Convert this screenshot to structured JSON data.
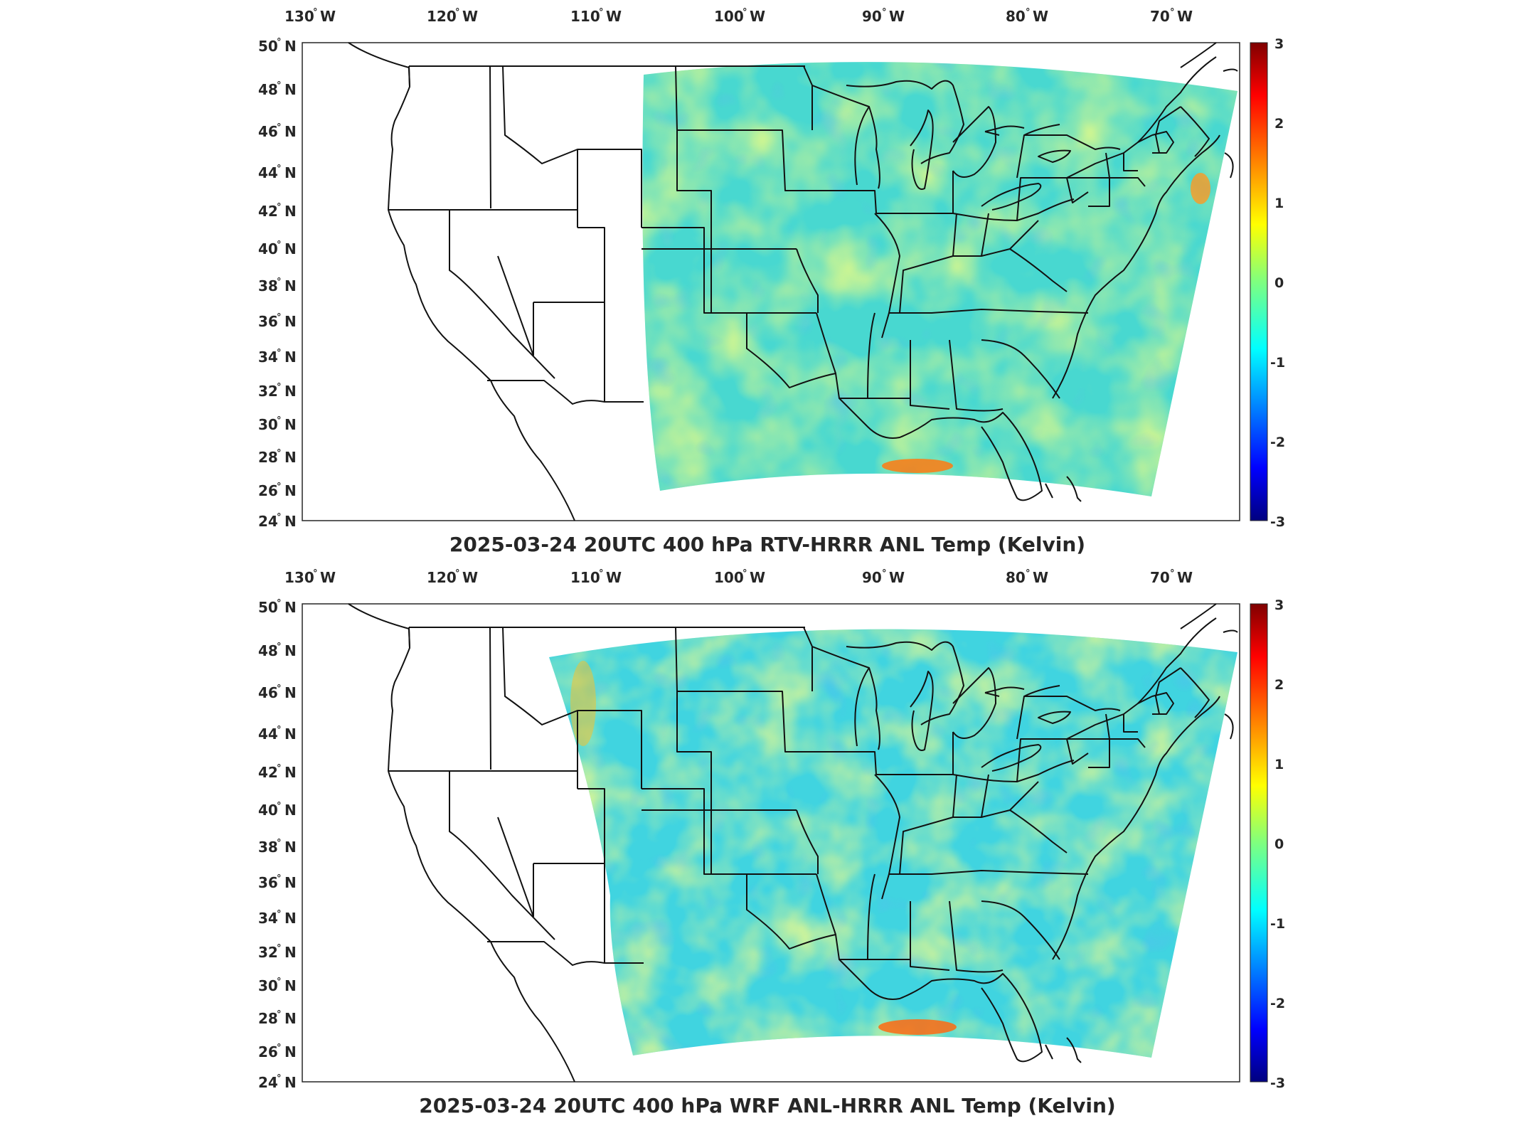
{
  "figure": {
    "colorbar": {
      "colormap": "jet",
      "ticks": [
        "3",
        "2",
        "1",
        "0",
        "-1",
        "-2",
        "-3"
      ],
      "range": [
        -3,
        3
      ]
    },
    "lon_ticks": [
      {
        "deg": "130",
        "hem": "W"
      },
      {
        "deg": "120",
        "hem": "W"
      },
      {
        "deg": "110",
        "hem": "W"
      },
      {
        "deg": "100",
        "hem": "W"
      },
      {
        "deg": "90",
        "hem": "W"
      },
      {
        "deg": "80",
        "hem": "W"
      },
      {
        "deg": "70",
        "hem": "W"
      }
    ],
    "lat_ticks": [
      {
        "deg": "50",
        "hem": "N"
      },
      {
        "deg": "48",
        "hem": "N"
      },
      {
        "deg": "46",
        "hem": "N"
      },
      {
        "deg": "44",
        "hem": "N"
      },
      {
        "deg": "42",
        "hem": "N"
      },
      {
        "deg": "40",
        "hem": "N"
      },
      {
        "deg": "38",
        "hem": "N"
      },
      {
        "deg": "36",
        "hem": "N"
      },
      {
        "deg": "34",
        "hem": "N"
      },
      {
        "deg": "32",
        "hem": "N"
      },
      {
        "deg": "30",
        "hem": "N"
      },
      {
        "deg": "28",
        "hem": "N"
      },
      {
        "deg": "26",
        "hem": "N"
      },
      {
        "deg": "24",
        "hem": "N"
      }
    ],
    "degree_symbol": "°"
  },
  "panels": [
    {
      "id": "top",
      "title": "2025-03-24 20UTC 400 hPa RTV-HRRR ANL Temp (Kelvin)",
      "domain_west_lon": -106.8,
      "field_tint": "#48d8d0"
    },
    {
      "id": "bottom",
      "title": "2025-03-24 20UTC 400 hPa WRF ANL-HRRR ANL Temp (Kelvin)",
      "domain_west_lon": -113.5,
      "field_tint": "#40d4e0"
    }
  ]
}
